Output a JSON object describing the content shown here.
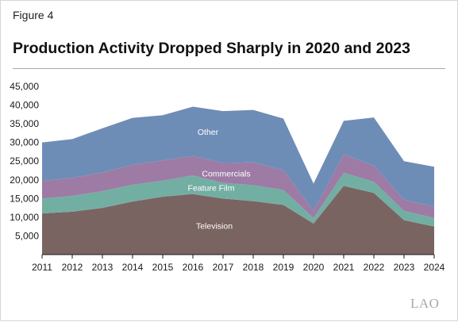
{
  "figure_label": "Figure 4",
  "title": "Production Activity Dropped Sharply in 2020 and 2023",
  "logo_text": "LAO",
  "chart_data": {
    "type": "area",
    "stacked": true,
    "x": [
      "2011",
      "2012",
      "2013",
      "2014",
      "2015",
      "2016",
      "2017",
      "2018",
      "2019",
      "2020",
      "2021",
      "2022",
      "2023",
      "2024"
    ],
    "ylim": [
      0,
      45000
    ],
    "yticks": [
      "5,000",
      "10,000",
      "15,000",
      "20,000",
      "25,000",
      "30,000",
      "35,000",
      "40,000",
      "45,000"
    ],
    "ytick_values": [
      5000,
      10000,
      15000,
      20000,
      25000,
      30000,
      35000,
      40000,
      45000
    ],
    "grid": false,
    "series": [
      {
        "name": "Television",
        "color": "#7a6461",
        "values": [
          11000,
          11500,
          12500,
          14200,
          15500,
          16200,
          15000,
          14300,
          13300,
          8300,
          18400,
          16500,
          9200,
          7500
        ]
      },
      {
        "name": "Feature Film",
        "color": "#73aea3",
        "values": [
          4000,
          4200,
          4500,
          4500,
          4300,
          5000,
          4200,
          4300,
          4000,
          1500,
          3500,
          3000,
          2500,
          2300
        ]
      },
      {
        "name": "Commercials",
        "color": "#9d7ba5",
        "values": [
          4700,
          4800,
          5000,
          5300,
          5400,
          5200,
          5300,
          6100,
          5300,
          1900,
          4900,
          4300,
          3000,
          3000
        ]
      },
      {
        "name": "Other",
        "color": "#6e8db6",
        "values": [
          10300,
          10400,
          11800,
          12600,
          12100,
          13200,
          13900,
          14000,
          13800,
          7300,
          9000,
          12900,
          10300,
          10700
        ]
      }
    ],
    "area_labels": [
      {
        "text": "Television",
        "series": "Television"
      },
      {
        "text": "Feature Film",
        "series": "Feature Film"
      },
      {
        "text": "Commercials",
        "series": "Commercials"
      },
      {
        "text": "Other",
        "series": "Other"
      }
    ]
  }
}
